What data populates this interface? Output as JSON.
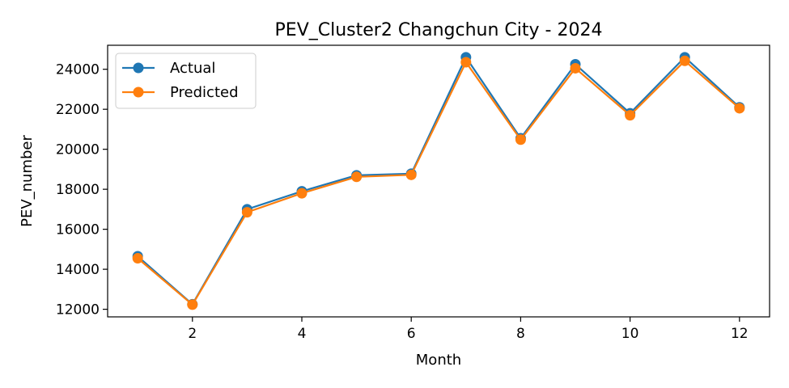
{
  "chart_data": {
    "type": "line",
    "title": "PEV_Cluster2 Changchun City - 2024",
    "xlabel": "Month",
    "ylabel": "PEV_number",
    "x": [
      1,
      2,
      3,
      4,
      5,
      6,
      7,
      8,
      9,
      10,
      11,
      12
    ],
    "xlim": [
      0.45,
      12.55
    ],
    "ylim": [
      11620,
      25200
    ],
    "xticks": [
      2,
      4,
      6,
      8,
      10,
      12
    ],
    "yticks": [
      12000,
      14000,
      16000,
      18000,
      20000,
      22000,
      24000
    ],
    "grid": false,
    "legend_position": "top-left",
    "series": [
      {
        "name": "Actual",
        "color": "#1f77b4",
        "marker": "circle",
        "values": [
          14650,
          12250,
          17000,
          17900,
          18700,
          18780,
          24600,
          20550,
          24250,
          21800,
          24600,
          22100
        ]
      },
      {
        "name": "Predicted",
        "color": "#ff7f0e",
        "marker": "circle",
        "values": [
          14550,
          12230,
          16850,
          17800,
          18620,
          18720,
          24350,
          20480,
          24050,
          21700,
          24420,
          22050
        ]
      }
    ]
  }
}
